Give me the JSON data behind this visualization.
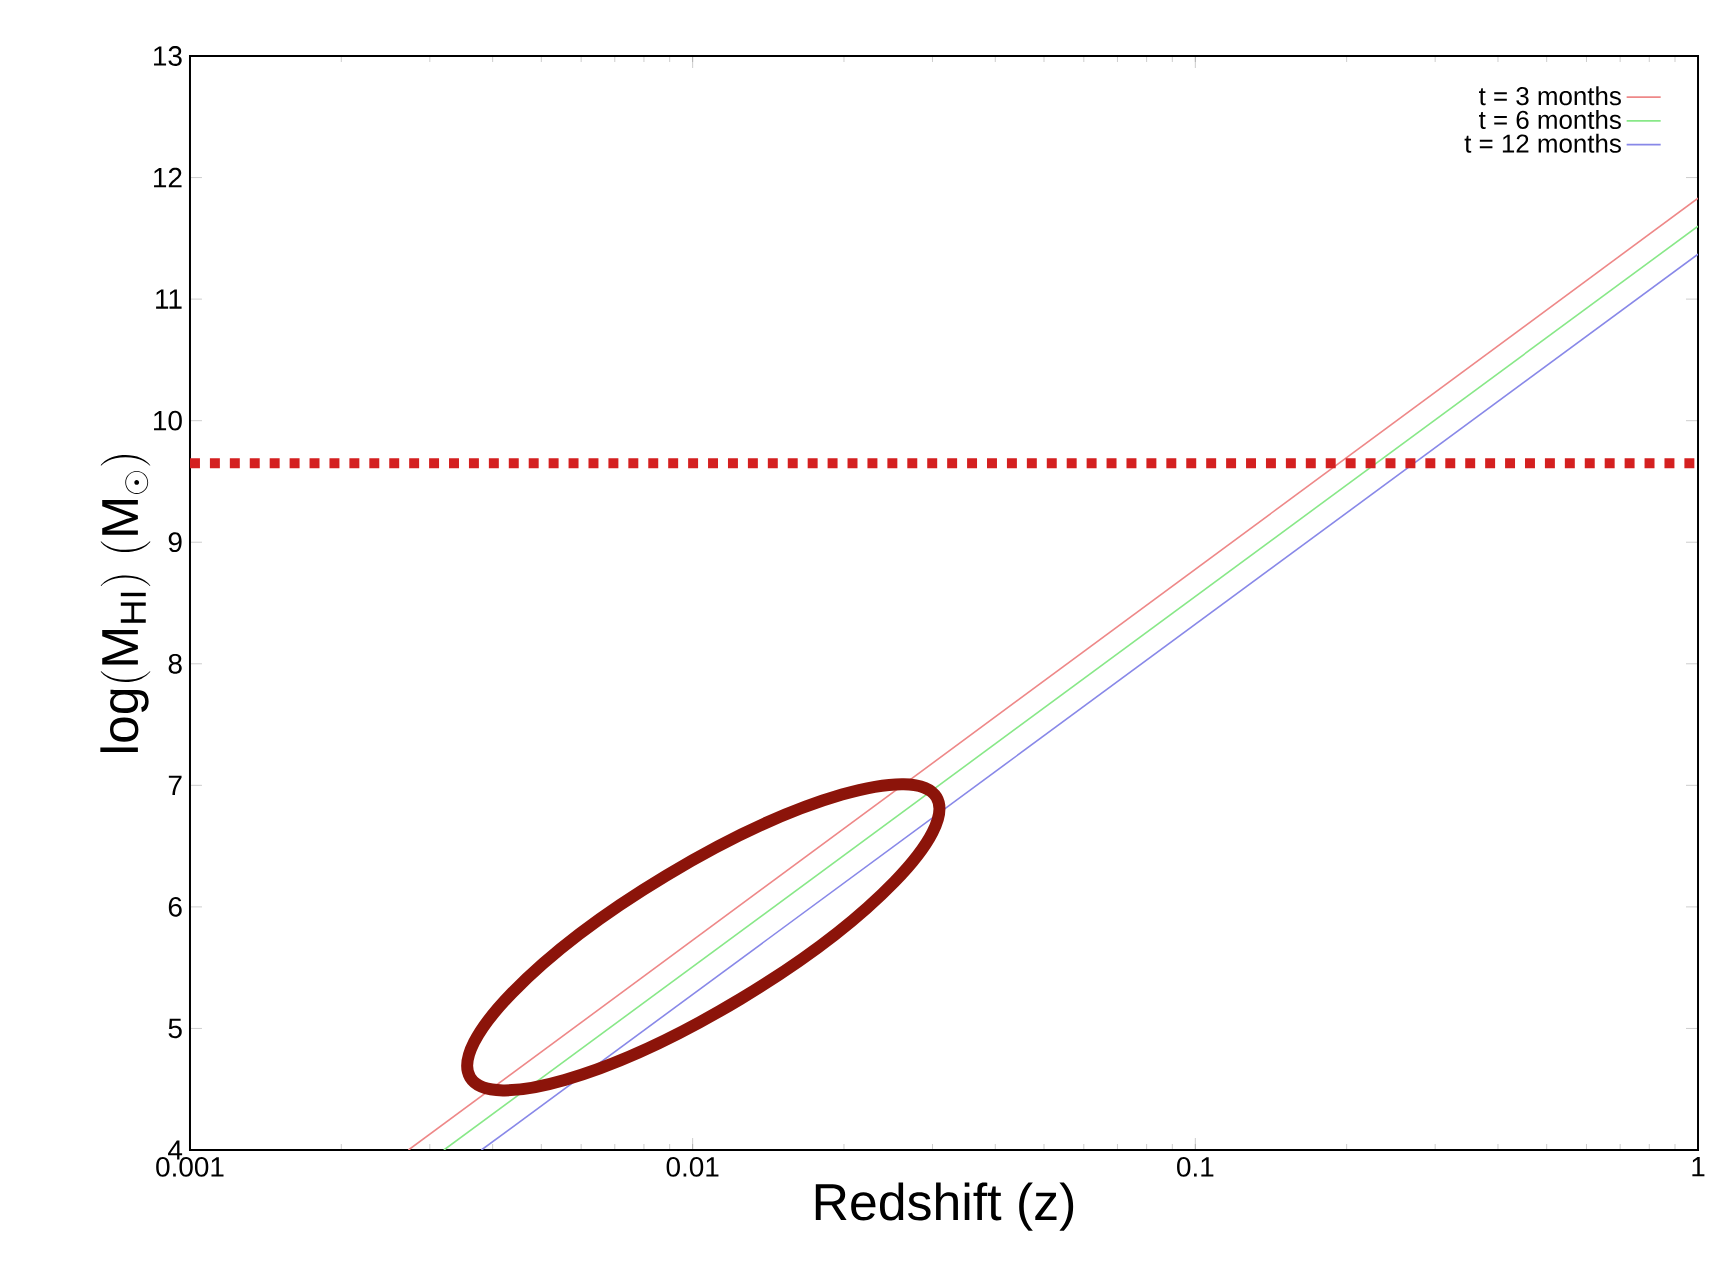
{
  "chart_data": {
    "type": "line",
    "xlabel": "Redshift (z)",
    "ylabel": "\\mathrm{log(M_{HI})\\ (M_{\\odot})}",
    "log": "x",
    "xlim": [
      0.001,
      1
    ],
    "ylim": [
      4,
      13
    ],
    "xticks": [
      0.001,
      0.01,
      0.1,
      1
    ],
    "yticks": [
      4,
      5,
      6,
      7,
      8,
      9,
      10,
      11,
      12,
      13
    ],
    "grid": false,
    "legend": "top right",
    "marker": "none",
    "line_style": "solid",
    "series": [
      {
        "name": "t = 3 months",
        "color": "#ee8888",
        "x": [
          0.00272,
          1
        ],
        "values": [
          4,
          11.83
        ]
      },
      {
        "name": "t = 6 months",
        "color": "#88e888",
        "x": [
          0.0032,
          1
        ],
        "values": [
          4,
          11.6
        ]
      },
      {
        "name": "t = 12 months",
        "color": "#8888e8",
        "x": [
          0.0038,
          1
        ],
        "values": [
          4,
          11.37
        ]
      }
    ],
    "ref_lines": [
      {
        "axis": "y",
        "value": 9.65,
        "color": "#d42020",
        "line_style": "dotted"
      }
    ]
  }
}
